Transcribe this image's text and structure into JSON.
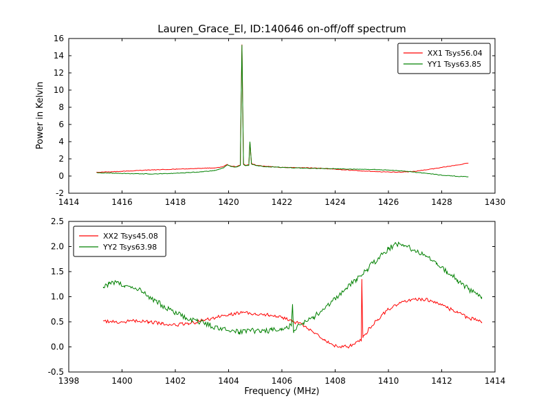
{
  "chart_data": [
    {
      "type": "line",
      "title": "Lauren_Grace_El, ID:140646 on-off/off spectrum",
      "ylabel": "Power in Kelvin",
      "xlabel": "",
      "xlim": [
        1414,
        1430
      ],
      "ylim": [
        -2,
        16
      ],
      "xtick_values": [
        1414,
        1416,
        1418,
        1420,
        1422,
        1424,
        1426,
        1428,
        1430
      ],
      "xtick_labels": [
        "1414",
        "1416",
        "1418",
        "1420",
        "1422",
        "1424",
        "1426",
        "1428",
        "1430"
      ],
      "ytick_values": [
        -2,
        0,
        2,
        4,
        6,
        8,
        10,
        12,
        14,
        16
      ],
      "ytick_labels": [
        "-2",
        "0",
        "2",
        "4",
        "6",
        "8",
        "10",
        "12",
        "14",
        "16"
      ],
      "grid": false,
      "legend_position": "top-right",
      "series": [
        {
          "name": "XX1 Tsys56.04",
          "color": "#ff0000",
          "noise": 0.035,
          "keypoints": [
            [
              1415.05,
              0.45
            ],
            [
              1415.5,
              0.5
            ],
            [
              1416,
              0.55
            ],
            [
              1416.5,
              0.62
            ],
            [
              1417,
              0.7
            ],
            [
              1417.5,
              0.75
            ],
            [
              1418,
              0.8
            ],
            [
              1418.5,
              0.85
            ],
            [
              1419,
              0.9
            ],
            [
              1419.5,
              0.95
            ],
            [
              1419.8,
              1.1
            ],
            [
              1419.95,
              1.35
            ],
            [
              1420.1,
              1.15
            ],
            [
              1420.3,
              1.1
            ],
            [
              1420.44,
              1.3
            ],
            [
              1420.5,
              15.3
            ],
            [
              1420.56,
              1.4
            ],
            [
              1420.65,
              1.25
            ],
            [
              1420.76,
              1.3
            ],
            [
              1420.8,
              3.85
            ],
            [
              1420.86,
              1.45
            ],
            [
              1421,
              1.3
            ],
            [
              1421.3,
              1.15
            ],
            [
              1421.7,
              1.05
            ],
            [
              1422,
              1.0
            ],
            [
              1422.5,
              0.98
            ],
            [
              1423,
              0.95
            ],
            [
              1423.5,
              0.9
            ],
            [
              1424,
              0.8
            ],
            [
              1424.5,
              0.7
            ],
            [
              1425,
              0.6
            ],
            [
              1425.5,
              0.52
            ],
            [
              1426,
              0.47
            ],
            [
              1426.5,
              0.45
            ],
            [
              1427,
              0.55
            ],
            [
              1427.5,
              0.75
            ],
            [
              1428,
              1.0
            ],
            [
              1428.5,
              1.25
            ],
            [
              1429,
              1.5
            ]
          ]
        },
        {
          "name": "YY1 Tsys63.85",
          "color": "#008000",
          "noise": 0.035,
          "keypoints": [
            [
              1415.05,
              0.4
            ],
            [
              1415.5,
              0.35
            ],
            [
              1416,
              0.3
            ],
            [
              1416.5,
              0.27
            ],
            [
              1417,
              0.25
            ],
            [
              1417.5,
              0.27
            ],
            [
              1418,
              0.32
            ],
            [
              1418.5,
              0.4
            ],
            [
              1419,
              0.5
            ],
            [
              1419.5,
              0.65
            ],
            [
              1419.8,
              0.95
            ],
            [
              1419.95,
              1.3
            ],
            [
              1420.1,
              1.1
            ],
            [
              1420.3,
              1.05
            ],
            [
              1420.44,
              1.25
            ],
            [
              1420.5,
              15.25
            ],
            [
              1420.56,
              1.35
            ],
            [
              1420.65,
              1.2
            ],
            [
              1420.76,
              1.25
            ],
            [
              1420.8,
              4.0
            ],
            [
              1420.86,
              1.4
            ],
            [
              1421,
              1.25
            ],
            [
              1421.3,
              1.1
            ],
            [
              1421.7,
              1.05
            ],
            [
              1422,
              1.0
            ],
            [
              1422.5,
              0.95
            ],
            [
              1423,
              0.9
            ],
            [
              1423.5,
              0.88
            ],
            [
              1424,
              0.85
            ],
            [
              1424.5,
              0.8
            ],
            [
              1425,
              0.78
            ],
            [
              1425.5,
              0.75
            ],
            [
              1426,
              0.7
            ],
            [
              1426.5,
              0.6
            ],
            [
              1427,
              0.45
            ],
            [
              1427.5,
              0.28
            ],
            [
              1428,
              0.1
            ],
            [
              1428.5,
              -0.02
            ],
            [
              1429,
              -0.08
            ]
          ]
        }
      ]
    },
    {
      "type": "line",
      "title": "",
      "ylabel": "",
      "xlabel": "Frequency (MHz)",
      "xlim": [
        1398,
        1414
      ],
      "ylim": [
        -0.5,
        2.5
      ],
      "xtick_values": [
        1398,
        1400,
        1402,
        1404,
        1406,
        1408,
        1410,
        1412,
        1414
      ],
      "xtick_labels": [
        "1398",
        "1400",
        "1402",
        "1404",
        "1406",
        "1408",
        "1410",
        "1412",
        "1414"
      ],
      "ytick_values": [
        -0.5,
        0.0,
        0.5,
        1.0,
        1.5,
        2.0,
        2.5
      ],
      "ytick_labels": [
        "-0.5",
        "0.0",
        "0.5",
        "1.0",
        "1.5",
        "2.0",
        "2.5"
      ],
      "grid": false,
      "legend_position": "top-left",
      "series": [
        {
          "name": "XX2 Tsys45.08",
          "color": "#ff0000",
          "noise": 0.035,
          "keypoints": [
            [
              1399.3,
              0.52
            ],
            [
              1399.7,
              0.5
            ],
            [
              1400,
              0.5
            ],
            [
              1400.5,
              0.52
            ],
            [
              1401,
              0.5
            ],
            [
              1401.5,
              0.47
            ],
            [
              1402,
              0.44
            ],
            [
              1402.5,
              0.46
            ],
            [
              1403,
              0.52
            ],
            [
              1403.5,
              0.58
            ],
            [
              1404,
              0.64
            ],
            [
              1404.5,
              0.68
            ],
            [
              1405,
              0.67
            ],
            [
              1405.5,
              0.63
            ],
            [
              1406,
              0.58
            ],
            [
              1406.4,
              0.52
            ],
            [
              1406.8,
              0.42
            ],
            [
              1407.2,
              0.28
            ],
            [
              1407.6,
              0.13
            ],
            [
              1408,
              0.03
            ],
            [
              1408.3,
              0.0
            ],
            [
              1408.6,
              0.02
            ],
            [
              1408.9,
              0.1
            ],
            [
              1408.98,
              0.14
            ],
            [
              1409.0,
              1.35
            ],
            [
              1409.04,
              0.18
            ],
            [
              1409.3,
              0.38
            ],
            [
              1409.6,
              0.55
            ],
            [
              1410,
              0.75
            ],
            [
              1410.5,
              0.9
            ],
            [
              1411,
              0.95
            ],
            [
              1411.4,
              0.95
            ],
            [
              1411.8,
              0.88
            ],
            [
              1412.2,
              0.78
            ],
            [
              1412.6,
              0.68
            ],
            [
              1413,
              0.58
            ],
            [
              1413.5,
              0.5
            ]
          ]
        },
        {
          "name": "YY2 Tsys63.98",
          "color": "#008000",
          "noise": 0.055,
          "keypoints": [
            [
              1399.3,
              1.18
            ],
            [
              1399.5,
              1.25
            ],
            [
              1399.8,
              1.28
            ],
            [
              1400.1,
              1.22
            ],
            [
              1400.4,
              1.18
            ],
            [
              1400.7,
              1.15
            ],
            [
              1401,
              1.0
            ],
            [
              1401.3,
              0.9
            ],
            [
              1401.6,
              0.8
            ],
            [
              1402,
              0.68
            ],
            [
              1402.4,
              0.58
            ],
            [
              1402.8,
              0.52
            ],
            [
              1403.2,
              0.45
            ],
            [
              1403.6,
              0.38
            ],
            [
              1404,
              0.32
            ],
            [
              1404.4,
              0.3
            ],
            [
              1404.8,
              0.33
            ],
            [
              1405.2,
              0.3
            ],
            [
              1405.6,
              0.33
            ],
            [
              1406,
              0.38
            ],
            [
              1406.36,
              0.42
            ],
            [
              1406.4,
              0.85
            ],
            [
              1406.44,
              0.28
            ],
            [
              1406.6,
              0.44
            ],
            [
              1406.8,
              0.48
            ],
            [
              1407.2,
              0.6
            ],
            [
              1407.6,
              0.75
            ],
            [
              1408,
              0.95
            ],
            [
              1408.4,
              1.15
            ],
            [
              1408.8,
              1.35
            ],
            [
              1409.2,
              1.55
            ],
            [
              1409.6,
              1.75
            ],
            [
              1410,
              1.95
            ],
            [
              1410.3,
              2.05
            ],
            [
              1410.6,
              2.02
            ],
            [
              1411,
              1.92
            ],
            [
              1411.4,
              1.8
            ],
            [
              1411.8,
              1.65
            ],
            [
              1412.2,
              1.5
            ],
            [
              1412.6,
              1.33
            ],
            [
              1413,
              1.15
            ],
            [
              1413.3,
              1.05
            ],
            [
              1413.5,
              1.0
            ]
          ]
        }
      ]
    }
  ]
}
